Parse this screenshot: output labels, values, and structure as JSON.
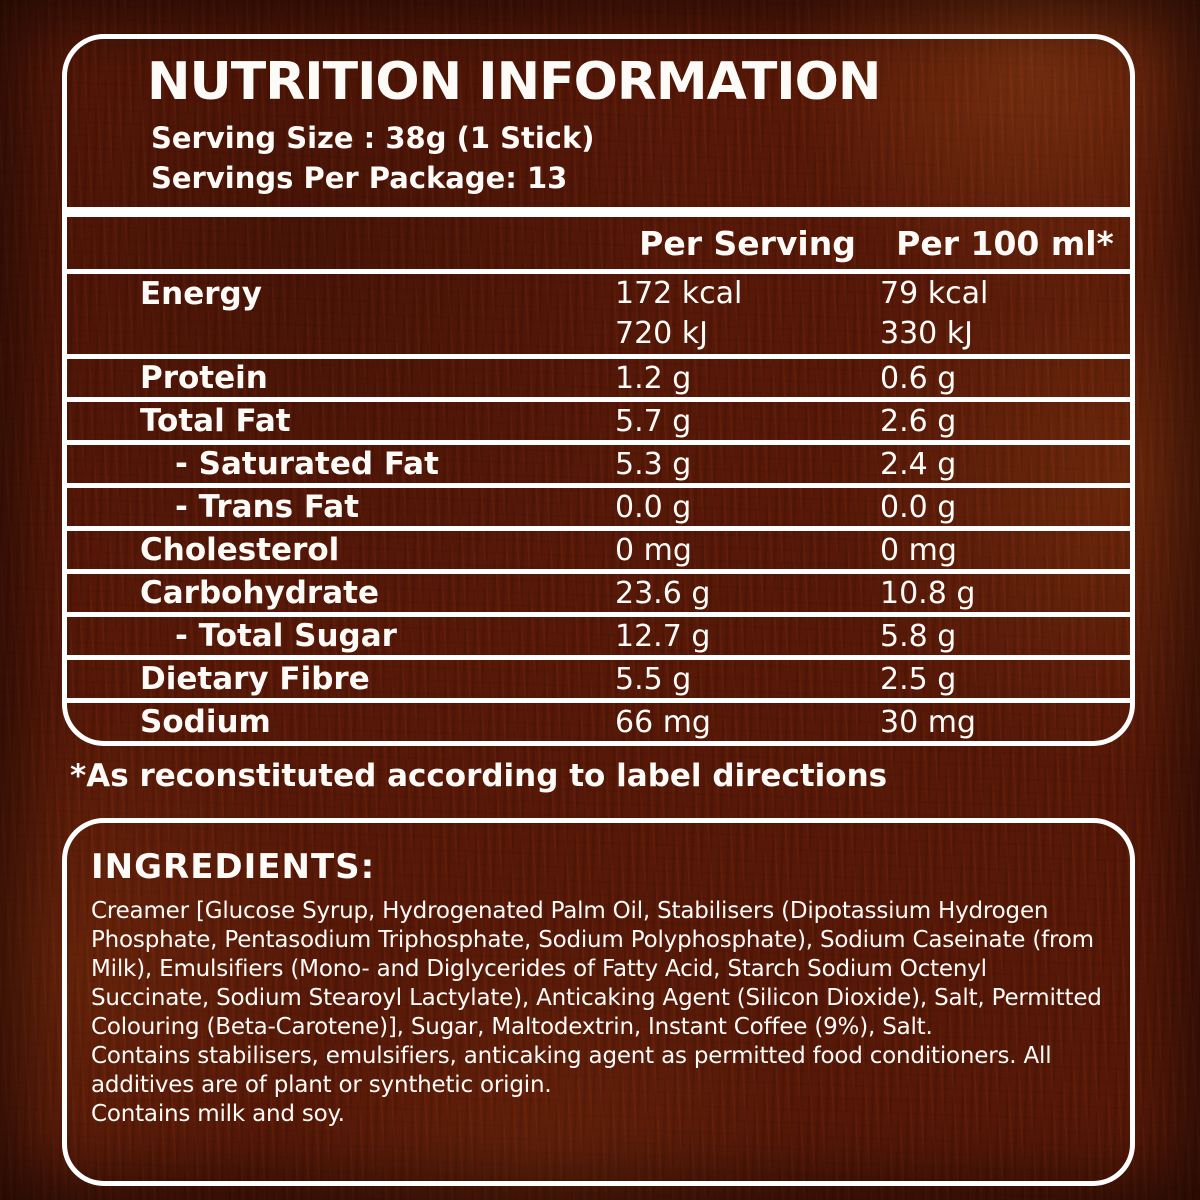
{
  "colors": {
    "background": "#571808",
    "text": "#fdfbf7",
    "line": "#ffffff"
  },
  "nutrition": {
    "title": "NUTRITION INFORMATION",
    "serving_size": "Serving Size : 38g (1 Stick)",
    "servings_per_package": "Servings Per Package: 13",
    "columns": [
      "Per Serving",
      "Per 100 ml*"
    ],
    "rows": [
      {
        "label": "Energy",
        "per_serving": "172 kcal",
        "per_100": "79 kcal",
        "line2": {
          "per_serving": "720 kJ",
          "per_100": "330 kJ"
        }
      },
      {
        "label": "Protein",
        "per_serving": "1.2 g",
        "per_100": "0.6 g"
      },
      {
        "label": "Total Fat",
        "per_serving": "5.7 g",
        "per_100": "2.6 g"
      },
      {
        "label": "- Saturated Fat",
        "indent": true,
        "per_serving": "5.3 g",
        "per_100": "2.4 g"
      },
      {
        "label": "- Trans Fat",
        "indent": true,
        "per_serving": "0.0 g",
        "per_100": "0.0 g"
      },
      {
        "label": "Cholesterol",
        "per_serving": "0 mg",
        "per_100": "0 mg"
      },
      {
        "label": "Carbohydrate",
        "per_serving": "23.6 g",
        "per_100": "10.8 g"
      },
      {
        "label": "- Total Sugar",
        "indent": true,
        "per_serving": "12.7 g",
        "per_100": "5.8 g"
      },
      {
        "label": "Dietary Fibre",
        "per_serving": "5.5 g",
        "per_100": "2.5 g"
      },
      {
        "label": "Sodium",
        "per_serving": "66 mg",
        "per_100": "30 mg"
      }
    ],
    "footnote": "*As reconstituted according to label directions"
  },
  "ingredients": {
    "heading": "INGREDIENTS:",
    "paragraphs": [
      "Creamer [Glucose Syrup, Hydrogenated Palm Oil, Stabilisers (Dipotassium Hydrogen Phosphate, Pentasodium Triphosphate, Sodium Polyphosphate), Sodium Caseinate (from Milk), Emulsifiers (Mono- and Diglycerides of Fatty Acid, Starch Sodium Octenyl Succinate, Sodium Stearoyl Lactylate), Anticaking Agent (Silicon Dioxide), Salt, Permitted Colouring (Beta-Carotene)], Sugar, Maltodextrin, Instant Coffee (9%), Salt.",
      "Contains stabilisers, emulsifiers, anticaking agent as permitted food conditioners. All additives are of plant or synthetic origin.",
      "Contains milk and soy."
    ]
  }
}
